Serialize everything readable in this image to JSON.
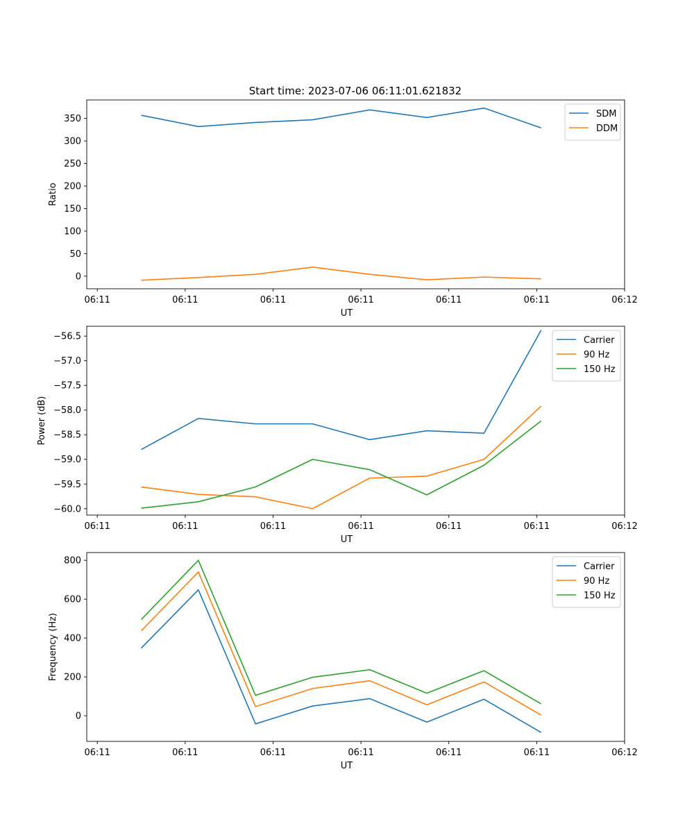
{
  "figure": {
    "title": "Start time: 2023-07-06 06:11:01.621832"
  },
  "chart_data": [
    {
      "type": "line",
      "title": "Start time: 2023-07-06 06:11:01.621832",
      "xlabel": "UT",
      "ylabel": "Ratio",
      "x_ticks": [
        "06:11",
        "06:11",
        "06:11",
        "06:11",
        "06:11",
        "06:11",
        "06:12"
      ],
      "x_tick_positions": [
        0,
        1,
        2,
        3,
        4,
        5,
        6
      ],
      "x_values": [
        0.5,
        1.15,
        1.8,
        2.45,
        3.1,
        3.75,
        4.4,
        5.05
      ],
      "xlim": [
        -0.12,
        6.0
      ],
      "ylim": [
        -28,
        391
      ],
      "y_ticks": [
        0,
        50,
        100,
        150,
        200,
        250,
        300,
        350
      ],
      "y_tick_labels": [
        "0",
        "50",
        "100",
        "150",
        "200",
        "250",
        "300",
        "350"
      ],
      "legend": "top-right",
      "series": [
        {
          "name": "SDM",
          "color": "#1f77b4",
          "values": [
            357,
            332,
            341,
            347,
            369,
            352,
            373,
            329
          ]
        },
        {
          "name": "DDM",
          "color": "#ff7f0e",
          "values": [
            -9,
            -3,
            4,
            20,
            4,
            -8,
            -2,
            -6
          ]
        }
      ]
    },
    {
      "type": "line",
      "title": "",
      "xlabel": "UT",
      "ylabel": "Power (dB)",
      "x_ticks": [
        "06:11",
        "06:11",
        "06:11",
        "06:11",
        "06:11",
        "06:11",
        "06:12"
      ],
      "x_tick_positions": [
        0,
        1,
        2,
        3,
        4,
        5,
        6
      ],
      "x_values": [
        0.5,
        1.15,
        1.8,
        2.45,
        3.1,
        3.75,
        4.4,
        5.05
      ],
      "xlim": [
        -0.12,
        6.0
      ],
      "ylim": [
        -60.13,
        -56.3
      ],
      "y_ticks": [
        -60.0,
        -59.5,
        -59.0,
        -58.5,
        -58.0,
        -57.5,
        -57.0,
        -56.5
      ],
      "y_tick_labels": [
        "−60.0",
        "−59.5",
        "−59.0",
        "−58.5",
        "−58.0",
        "−57.5",
        "−57.0",
        "−56.5"
      ],
      "legend": "top-right",
      "series": [
        {
          "name": "Carrier",
          "color": "#1f77b4",
          "values": [
            -58.8,
            -58.17,
            -58.28,
            -58.28,
            -58.6,
            -58.42,
            -58.47,
            -56.38
          ]
        },
        {
          "name": "90 Hz",
          "color": "#ff7f0e",
          "values": [
            -59.56,
            -59.71,
            -59.76,
            -60.0,
            -59.38,
            -59.34,
            -59.0,
            -57.92
          ]
        },
        {
          "name": "150 Hz",
          "color": "#2ca02c",
          "values": [
            -59.99,
            -59.86,
            -59.56,
            -59.0,
            -59.21,
            -59.72,
            -59.12,
            -58.22
          ]
        }
      ]
    },
    {
      "type": "line",
      "title": "",
      "xlabel": "UT",
      "ylabel": "Frequency (Hz)",
      "x_ticks": [
        "06:11",
        "06:11",
        "06:11",
        "06:11",
        "06:11",
        "06:11",
        "06:12"
      ],
      "x_tick_positions": [
        0,
        1,
        2,
        3,
        4,
        5,
        6
      ],
      "x_values": [
        0.5,
        1.15,
        1.8,
        2.45,
        3.1,
        3.75,
        4.4,
        5.05
      ],
      "xlim": [
        -0.12,
        6.0
      ],
      "ylim": [
        -132,
        840
      ],
      "y_ticks": [
        0,
        200,
        400,
        600,
        800
      ],
      "y_tick_labels": [
        "0",
        "200",
        "400",
        "600",
        "800"
      ],
      "legend": "top-right",
      "series": [
        {
          "name": "Carrier",
          "color": "#1f77b4",
          "values": [
            348,
            648,
            -42,
            50,
            88,
            -33,
            85,
            -86
          ]
        },
        {
          "name": "90 Hz",
          "color": "#ff7f0e",
          "values": [
            437,
            740,
            47,
            140,
            180,
            56,
            174,
            3
          ]
        },
        {
          "name": "150 Hz",
          "color": "#2ca02c",
          "values": [
            495,
            800,
            105,
            198,
            237,
            116,
            232,
            61
          ]
        }
      ]
    }
  ]
}
